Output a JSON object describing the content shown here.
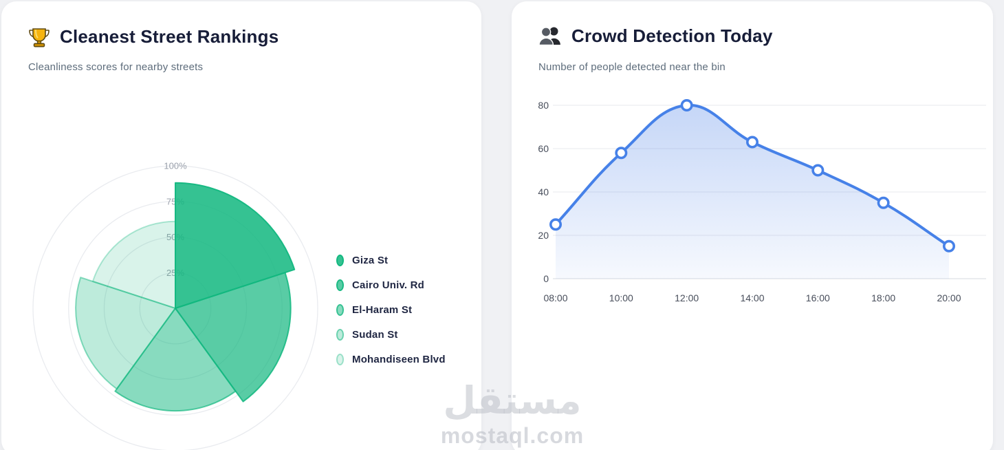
{
  "page": {
    "background_color": "#f0f1f4",
    "watermark": {
      "logo_text": "مستقل",
      "url_text": "mostaql.com"
    }
  },
  "cards": {
    "rankings": {
      "icon": "trophy-icon",
      "title": "Cleanest Street Rankings",
      "subtitle": "Cleanliness scores for nearby streets"
    },
    "crowd": {
      "icon": "crowd-icon",
      "title": "Crowd Detection Today",
      "subtitle": "Number of people detected near the bin"
    }
  },
  "chart_data": [
    {
      "type": "polar_area",
      "title": "Cleanest Street Rankings",
      "max": 100,
      "ring_ticks": [
        25,
        50,
        75,
        100
      ],
      "ring_tick_labels": [
        "25%",
        "50%",
        "75%",
        "100%"
      ],
      "grid_color": "#e9ebef",
      "legend_position": "right",
      "series": [
        {
          "label": "Giza St",
          "value": 88,
          "fill": "rgba(18,183,127,0.85)",
          "border": "rgba(18,183,127,0.95)"
        },
        {
          "label": "Cairo Univ. Rd",
          "value": 81,
          "fill": "rgba(18,183,127,0.70)",
          "border": "rgba(18,183,127,0.85)"
        },
        {
          "label": "El-Haram St",
          "value": 72,
          "fill": "rgba(18,183,127,0.50)",
          "border": "rgba(18,183,127,0.68)"
        },
        {
          "label": "Sudan St",
          "value": 70,
          "fill": "rgba(18,183,127,0.28)",
          "border": "rgba(18,183,127,0.48)"
        },
        {
          "label": "Mohandiseen Blvd",
          "value": 61,
          "fill": "rgba(18,183,127,0.16)",
          "border": "rgba(18,183,127,0.32)"
        }
      ]
    },
    {
      "type": "area",
      "title": "Crowd Detection Today",
      "categories": [
        "08:00",
        "10:00",
        "12:00",
        "14:00",
        "16:00",
        "18:00",
        "20:00"
      ],
      "values": [
        25,
        58,
        80,
        63,
        50,
        35,
        15
      ],
      "ylim": [
        0,
        80
      ],
      "yticks": [
        0,
        20,
        40,
        60,
        80
      ],
      "grid": "on",
      "legend_position": "none",
      "line_color": "#4681e8",
      "point_fill": "#ffffff",
      "area_fill_top": "rgba(86,136,232,0.34)",
      "area_fill_bottom": "rgba(86,136,232,0.05)",
      "grid_color": "#eff0f3",
      "baseline_color": "#e3e5ea"
    }
  ]
}
